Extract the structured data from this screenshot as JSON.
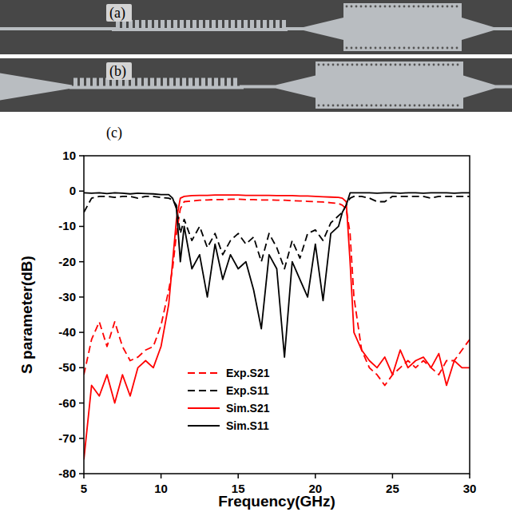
{
  "figure": {
    "labels": [
      "(a)",
      "(b)",
      "(c)"
    ]
  },
  "chart_data": {
    "type": "line",
    "x_label": "Frequency(GHz)",
    "y_label": "S parameter(dB)",
    "x": [
      5,
      5.5,
      6,
      6.5,
      7,
      7.5,
      8,
      8.5,
      9,
      9.5,
      10,
      10.5,
      10.75,
      11,
      11.25,
      11.5,
      12,
      12.5,
      13,
      13.5,
      14,
      14.5,
      15,
      15.5,
      16,
      16.5,
      17,
      17.5,
      18,
      18.5,
      19,
      19.5,
      20,
      20.5,
      21,
      21.5,
      21.75,
      22,
      22.25,
      22.5,
      23,
      23.5,
      24,
      24.5,
      25,
      25.5,
      26,
      26.5,
      27,
      27.5,
      28,
      28.5,
      29,
      29.5,
      30
    ],
    "series": [
      {
        "name": "Exp.S21",
        "color": "#ff0000",
        "line_style": "dashed",
        "values": [
          -52,
          -42,
          -37,
          -44,
          -37,
          -44,
          -48,
          -47,
          -45,
          -44,
          -38,
          -28,
          -22,
          -12,
          -5,
          -3,
          -2.8,
          -2.6,
          -2.5,
          -2.4,
          -2.4,
          -2.3,
          -2.3,
          -2.4,
          -2.4,
          -2.5,
          -2.5,
          -2.6,
          -2.6,
          -2.7,
          -2.8,
          -2.9,
          -3,
          -3.1,
          -3.3,
          -3.5,
          -4,
          -5,
          -12,
          -30,
          -45,
          -50,
          -52,
          -55,
          -52,
          -50,
          -48,
          -50,
          -48,
          -50,
          -52,
          -48,
          -48,
          -45,
          -42
        ]
      },
      {
        "name": "Exp.S11",
        "color": "#000000",
        "line_style": "dashed",
        "values": [
          -6,
          -2,
          -1.5,
          -1.5,
          -1.8,
          -1.5,
          -1.5,
          -2,
          -1.5,
          -1.5,
          -1.8,
          -2,
          -2.5,
          -4,
          -12,
          -8,
          -14,
          -10,
          -16,
          -12,
          -18,
          -14,
          -12,
          -15,
          -13,
          -20,
          -12,
          -16,
          -22,
          -14,
          -19,
          -12,
          -11,
          -14,
          -9,
          -7,
          -6,
          -4,
          -2,
          -1.5,
          -1.5,
          -2,
          -3,
          -3,
          -1.5,
          -1.5,
          -1.5,
          -1.5,
          -1.5,
          -2,
          -1.5,
          -1.5,
          -1.5,
          -1.5,
          -1.5
        ]
      },
      {
        "name": "Sim.S21",
        "color": "#ff0000",
        "line_style": "solid",
        "values": [
          -76,
          -55,
          -58,
          -52,
          -60,
          -52,
          -58,
          -50,
          -48,
          -50,
          -44,
          -32,
          -20,
          -8,
          -2,
          -1.5,
          -1.3,
          -1.2,
          -1.2,
          -1.1,
          -1.1,
          -1.1,
          -1.1,
          -1.2,
          -1.2,
          -1.2,
          -1.2,
          -1.3,
          -1.3,
          -1.3,
          -1.4,
          -1.4,
          -1.5,
          -1.6,
          -1.7,
          -1.8,
          -2,
          -3,
          -20,
          -40,
          -45,
          -48,
          -50,
          -47,
          -52,
          -45,
          -50,
          -48,
          -47,
          -50,
          -46,
          -55,
          -48,
          -50,
          -50
        ]
      },
      {
        "name": "Sim.S11",
        "color": "#000000",
        "line_style": "solid",
        "values": [
          -0.5,
          -0.6,
          -0.5,
          -0.7,
          -0.5,
          -0.6,
          -0.8,
          -0.6,
          -0.7,
          -0.8,
          -1,
          -1,
          -2,
          -5,
          -20,
          -10,
          -22,
          -18,
          -30,
          -15,
          -25,
          -18,
          -22,
          -20,
          -28,
          -39,
          -18,
          -22,
          -47,
          -20,
          -25,
          -30,
          -15,
          -31,
          -12,
          -10,
          -6,
          -4,
          -0.5,
          -0.5,
          -0.5,
          -0.5,
          -0.6,
          -0.5,
          -0.5,
          -0.6,
          -0.5,
          -0.5,
          -0.6,
          -0.5,
          -0.5,
          -0.5,
          -0.6,
          -0.5,
          -0.5
        ]
      }
    ],
    "xlim": [
      5,
      30
    ],
    "xticks": [
      5,
      10,
      15,
      20,
      25,
      30
    ],
    "ylim": [
      -80,
      10
    ],
    "yticks": [
      10,
      0,
      -10,
      -20,
      -30,
      -40,
      -50,
      -60,
      -70,
      -80
    ],
    "legend": "lower left"
  }
}
